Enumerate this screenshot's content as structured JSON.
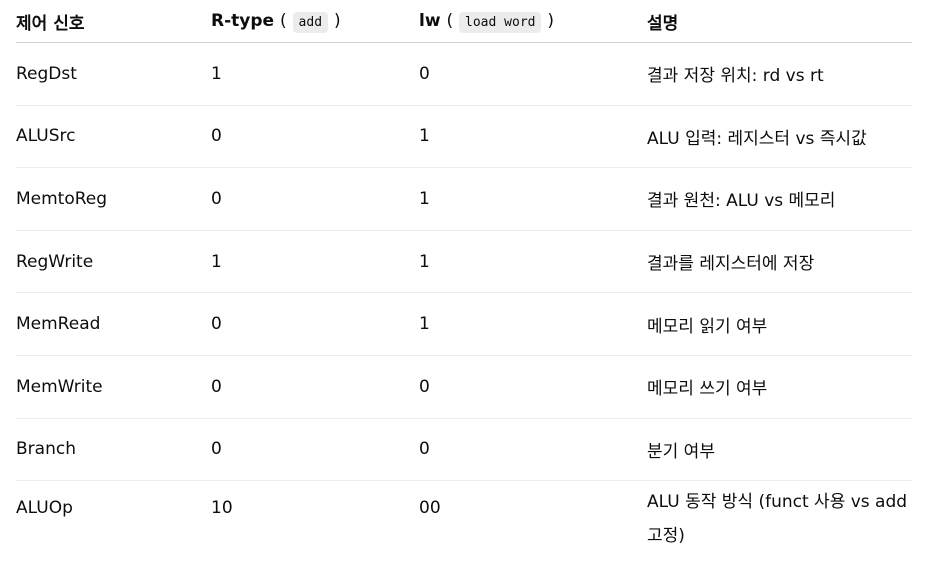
{
  "table": {
    "headers": {
      "signal": "제어 신호",
      "rtype_label": "R-type",
      "rtype_code": "add",
      "lw_label": "lw",
      "lw_code": "load word",
      "description": "설명"
    },
    "rows": [
      {
        "signal": "RegDst",
        "rtype": "1",
        "lw": "0",
        "desc": "결과 저장 위치: rd vs rt"
      },
      {
        "signal": "ALUSrc",
        "rtype": "0",
        "lw": "1",
        "desc": "ALU 입력: 레지스터 vs 즉시값"
      },
      {
        "signal": "MemtoReg",
        "rtype": "0",
        "lw": "1",
        "desc": "결과 원천: ALU vs 메모리"
      },
      {
        "signal": "RegWrite",
        "rtype": "1",
        "lw": "1",
        "desc": "결과를 레지스터에 저장"
      },
      {
        "signal": "MemRead",
        "rtype": "0",
        "lw": "1",
        "desc": "메모리 읽기 여부"
      },
      {
        "signal": "MemWrite",
        "rtype": "0",
        "lw": "0",
        "desc": "메모리 쓰기 여부"
      },
      {
        "signal": "Branch",
        "rtype": "0",
        "lw": "0",
        "desc": "분기 여부"
      },
      {
        "signal": "ALUOp",
        "rtype": "10",
        "lw": "00",
        "desc": "ALU 동작 방식 (funct 사용 vs add 고정)"
      }
    ]
  }
}
